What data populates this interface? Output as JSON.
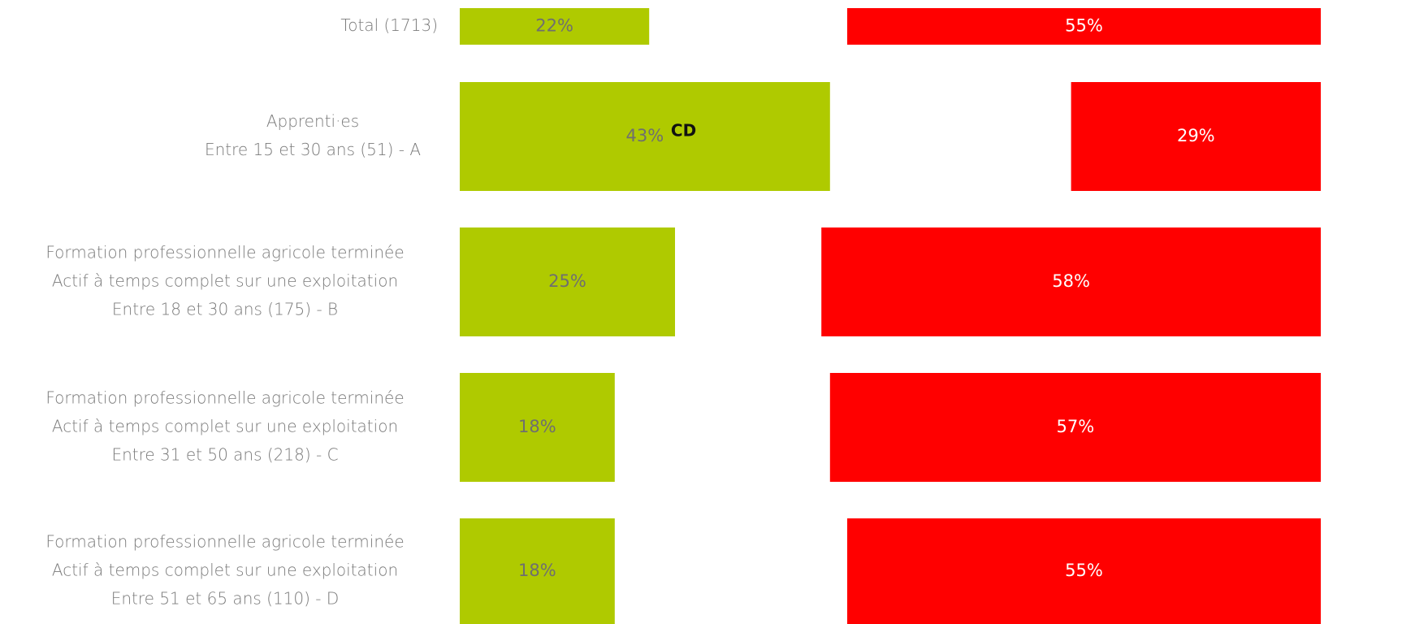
{
  "chart_data": {
    "type": "bar",
    "orientation": "horizontal",
    "categories": [
      [
        "Total (1713)"
      ],
      [
        "Apprenti·es",
        "Entre 15 et 30 ans (51) - A"
      ],
      [
        "Formation professionnelle agricole terminée",
        "Actif à temps complet sur une exploitation",
        "Entre 18 et 30 ans (175) - B"
      ],
      [
        "Formation professionnelle agricole terminée",
        "Actif à temps complet sur une exploitation",
        "Entre 31 et 50 ans (218) - C"
      ],
      [
        "Formation professionnelle agricole terminée",
        "Actif à temps complet sur une exploitation",
        "Entre 51 et 65 ans (110) - D"
      ]
    ],
    "series": [
      {
        "color": "#afca00",
        "values": [
          22,
          43,
          25,
          18,
          18
        ],
        "labels": [
          "22%",
          "43%",
          "25%",
          "18%",
          "18%"
        ],
        "significance": [
          "",
          "CD",
          "",
          "",
          ""
        ]
      },
      {
        "color": "#ff0000",
        "values": [
          55,
          29,
          58,
          57,
          55
        ],
        "labels": [
          "55%",
          "29%",
          "58%",
          "57%",
          "55%"
        ],
        "significance": [
          "",
          "",
          "",
          "",
          ""
        ]
      }
    ],
    "xlim": [
      0,
      100
    ],
    "legend": "none",
    "grid": false
  }
}
